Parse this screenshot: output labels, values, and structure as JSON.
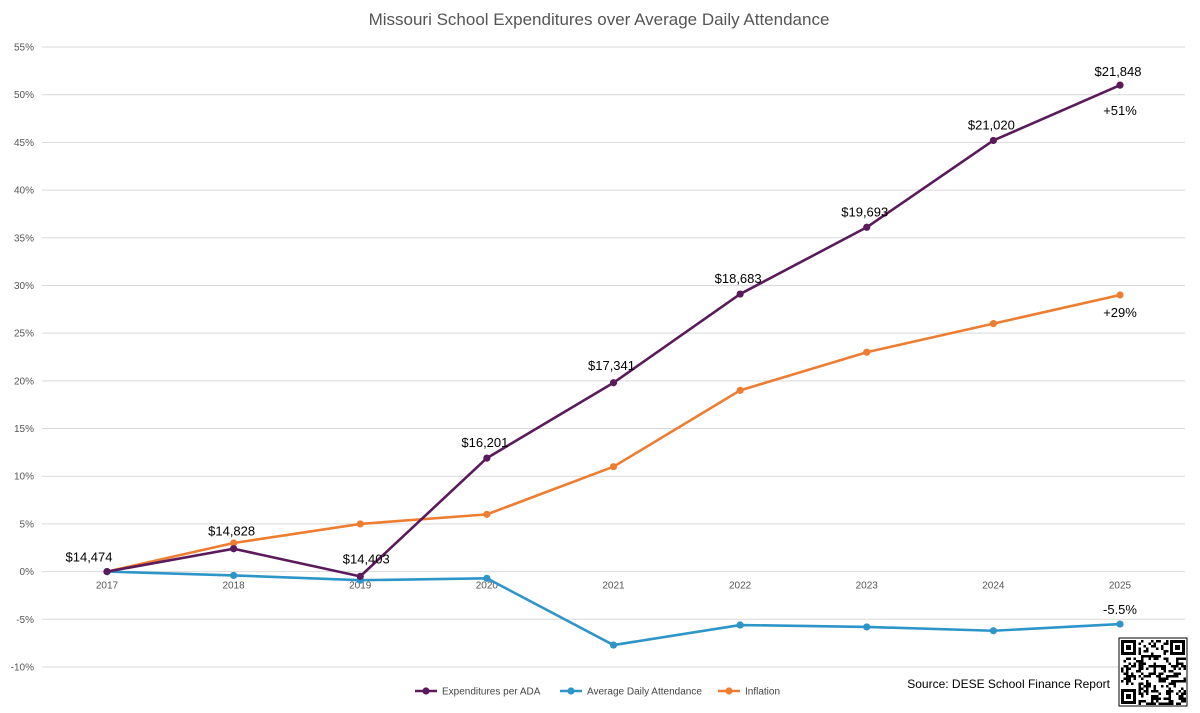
{
  "chart_data": {
    "type": "line",
    "title": "Missouri School Expenditures over Average Daily Attendance",
    "xlabel": "",
    "ylabel": "",
    "categories": [
      "2017",
      "2018",
      "2019",
      "2020",
      "2021",
      "2022",
      "2023",
      "2024",
      "2025"
    ],
    "ylim": [
      -10,
      55
    ],
    "y_ticks": [
      55,
      50,
      45,
      40,
      35,
      30,
      25,
      20,
      15,
      10,
      5,
      0,
      -5,
      -10
    ],
    "y_tick_labels": [
      "55%",
      "50%",
      "45%",
      "40%",
      "35%",
      "30%",
      "25%",
      "20%",
      "15%",
      "10%",
      "5%",
      "0%",
      "-5%",
      "-10%"
    ],
    "grid": "horizontal",
    "legend_position": "bottom",
    "series": [
      {
        "name": "Expenditures per ADA",
        "color": "#5b1a5b",
        "values": [
          0,
          2.4,
          -0.5,
          11.9,
          19.8,
          29.1,
          36.1,
          45.2,
          51.0
        ],
        "labels": [
          "$14,474",
          "$14,828",
          "$14,403",
          "$16,201",
          "$17,341",
          "$18,683",
          "$19,693",
          "$21,020",
          "$21,848"
        ],
        "end_label": "+51%"
      },
      {
        "name": "Average Daily Attendance",
        "color": "#2e95c8",
        "values": [
          0,
          -0.4,
          -0.9,
          -0.7,
          -7.7,
          -5.6,
          -5.8,
          -6.2,
          -5.5
        ],
        "end_label": "-5.5%"
      },
      {
        "name": "Inflation",
        "color": "#ed7d31",
        "values": [
          0,
          3.0,
          5.0,
          6.0,
          11.0,
          19.0,
          23.0,
          26.0,
          29.0
        ],
        "end_label": "+29%"
      }
    ],
    "source": "Source: DESE School Finance Report"
  }
}
